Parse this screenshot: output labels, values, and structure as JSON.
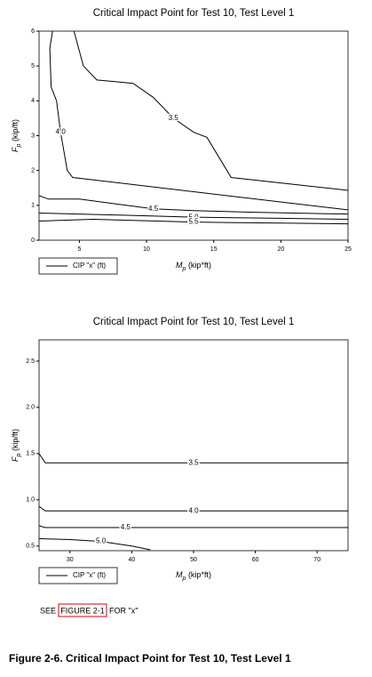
{
  "chart_data": [
    {
      "type": "contour",
      "title": "Critical Impact Point for Test 10, Test Level 1",
      "x_label": {
        "main": "M",
        "sub": "p",
        "rest": " (kip*ft)"
      },
      "y_label": {
        "main": "F",
        "sub": "p",
        "rest": " (kip/ft)"
      },
      "legend": "CIP \"x\" (ft)",
      "xlim": [
        2,
        25
      ],
      "xticks": [
        5,
        10,
        15,
        20,
        25
      ],
      "ylim": [
        0,
        6
      ],
      "yticks": [
        0,
        1,
        2,
        3,
        4,
        5,
        6
      ],
      "color": "#000000",
      "series": [
        {
          "name": "4.0",
          "x": [
            3,
            2.8,
            2.9,
            3.3,
            3.6,
            4.1,
            4.5,
            25
          ],
          "y": [
            6,
            5.5,
            4.4,
            4,
            3.1,
            2,
            1.8,
            0.87
          ]
        },
        {
          "name": "3.5",
          "x": [
            4.6,
            5.3,
            6.3,
            9,
            10.5,
            12,
            13.5,
            14.5,
            16.3,
            25
          ],
          "y": [
            6,
            5,
            4.6,
            4.5,
            4.1,
            3.5,
            3.1,
            2.95,
            1.8,
            1.43
          ]
        },
        {
          "name": "4.5",
          "x": [
            2,
            2.7,
            5,
            10.5,
            13.5,
            18,
            25
          ],
          "y": [
            1.28,
            1.18,
            1.18,
            0.9,
            0.85,
            0.8,
            0.75
          ]
        },
        {
          "name": "5.0",
          "x": [
            2,
            8,
            13.5,
            20,
            25
          ],
          "y": [
            0.78,
            0.72,
            0.66,
            0.63,
            0.6
          ]
        },
        {
          "name": "5.5",
          "x": [
            2,
            6,
            13.5,
            20,
            25
          ],
          "y": [
            0.55,
            0.6,
            0.52,
            0.49,
            0.47
          ]
        }
      ]
    },
    {
      "type": "contour",
      "title": "Critical Impact Point for Test 10, Test Level 1",
      "x_label": {
        "main": "M",
        "sub": "p",
        "rest": " (kip*ft)"
      },
      "y_label": {
        "main": "F",
        "sub": "p",
        "rest": " (kip/ft)"
      },
      "legend": "CIP \"x\" (ft)",
      "xlim": [
        25,
        75
      ],
      "xticks": [
        30,
        40,
        50,
        60,
        70
      ],
      "ylim": [
        0.45,
        2.73
      ],
      "yticks": [
        0.5,
        {
          "value": 1,
          "label": "1.0"
        },
        1.5,
        {
          "value": 2,
          "label": "2.0"
        },
        2.5
      ],
      "color": "#000000",
      "series": [
        {
          "name": "3.5",
          "x": [
            25,
            26,
            50,
            75
          ],
          "y": [
            1.5,
            1.4,
            1.4,
            1.4
          ]
        },
        {
          "name": "4.0",
          "x": [
            25,
            26,
            50,
            75
          ],
          "y": [
            0.93,
            0.88,
            0.88,
            0.88
          ]
        },
        {
          "name": "4.5",
          "x": [
            25,
            26,
            39,
            75
          ],
          "y": [
            0.72,
            0.7,
            0.7,
            0.7
          ]
        },
        {
          "name": "5.0",
          "x": [
            25,
            30,
            35,
            40,
            43
          ],
          "y": [
            0.58,
            0.57,
            0.55,
            0.5,
            0.46
          ]
        }
      ]
    }
  ],
  "note": {
    "pre": "SEE",
    "link": "FIGURE 2-1",
    "post": "FOR \"x\""
  },
  "caption": "Figure 2-6. Critical Impact Point for Test 10, Test Level 1"
}
